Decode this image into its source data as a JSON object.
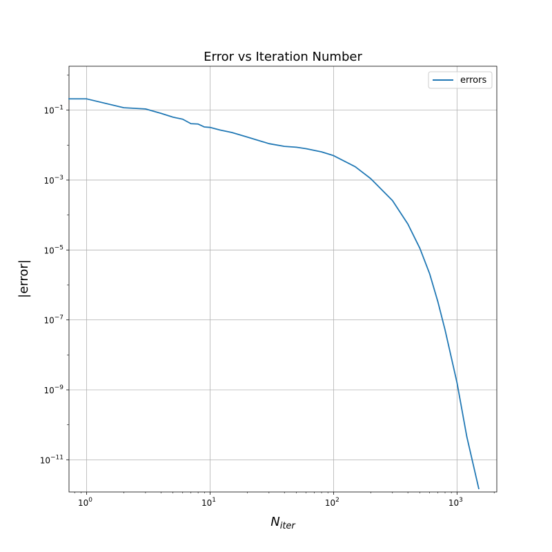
{
  "chart_data": {
    "type": "line",
    "title": "Error vs Iteration Number",
    "xlabel": {
      "base": "N",
      "sub": "iter"
    },
    "ylabel": "|error|",
    "xscale": "log",
    "yscale": "log",
    "xlim": [
      0.72,
      2100
    ],
    "ylim": [
      1.2e-12,
      1.8
    ],
    "grid": true,
    "legend_position": "top-right",
    "x_ticks": [
      {
        "base": "10",
        "exp": "0",
        "value": 1
      },
      {
        "base": "10",
        "exp": "1",
        "value": 10
      },
      {
        "base": "10",
        "exp": "2",
        "value": 100
      },
      {
        "base": "10",
        "exp": "3",
        "value": 1000
      }
    ],
    "y_ticks": [
      {
        "base": "10",
        "exp": "−1",
        "value": 0.1
      },
      {
        "base": "10",
        "exp": "−3",
        "value": 0.001
      },
      {
        "base": "10",
        "exp": "−5",
        "value": 1e-05
      },
      {
        "base": "10",
        "exp": "−7",
        "value": 1e-07
      },
      {
        "base": "10",
        "exp": "−9",
        "value": 1e-09
      },
      {
        "base": "10",
        "exp": "−11",
        "value": 1e-11
      }
    ],
    "series": [
      {
        "name": "errors",
        "color": "#1f77b4",
        "x": [
          0.72,
          1,
          2,
          3,
          4,
          5,
          6,
          7,
          8,
          9,
          10,
          12,
          15,
          20,
          30,
          40,
          50,
          60,
          80,
          100,
          150,
          200,
          300,
          400,
          500,
          600,
          700,
          800,
          1000,
          1200,
          1500
        ],
        "y": [
          0.21,
          0.21,
          0.117,
          0.108,
          0.081,
          0.063,
          0.055,
          0.041,
          0.04,
          0.033,
          0.032,
          0.027,
          0.023,
          0.017,
          0.011,
          0.0092,
          0.0087,
          0.0079,
          0.0064,
          0.005,
          0.0024,
          0.0011,
          0.00026,
          5.5e-05,
          1.12e-05,
          2.1e-06,
          3.3e-07,
          5.2e-08,
          1.6e-09,
          4.6e-11,
          1.5e-12
        ]
      }
    ]
  }
}
